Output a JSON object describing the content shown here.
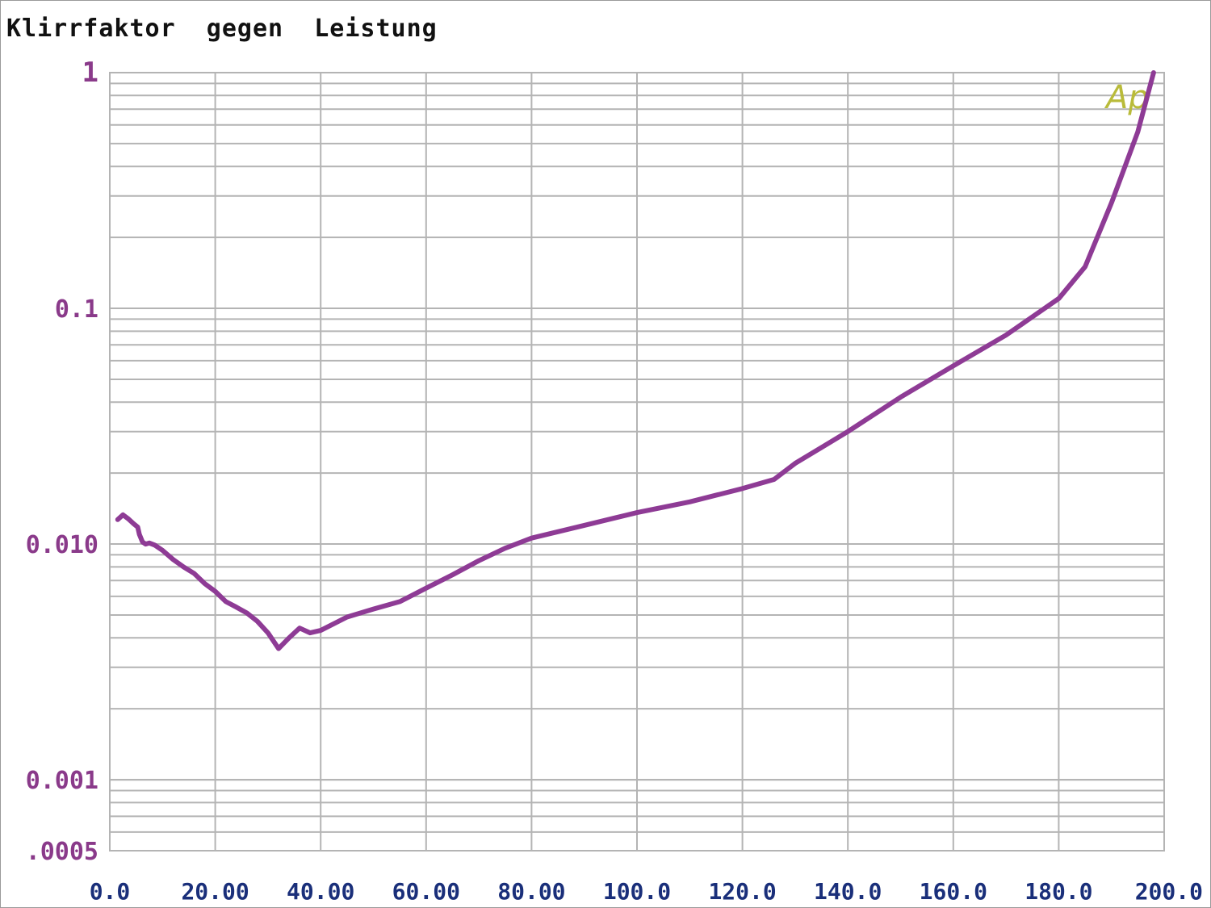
{
  "title": "Klirrfaktor  gegen  Leistung",
  "brand_logo": "Ap",
  "colors": {
    "curve": "#8e3b95",
    "grid": "#b4b4b4",
    "y_tick_text": "#8a3a8a",
    "x_tick_text": "#1a2f7a",
    "brand": "#b9bb3a"
  },
  "chart_data": {
    "type": "line",
    "title": "Klirrfaktor  gegen  Leistung",
    "xlabel": "",
    "ylabel": "",
    "xlim": [
      0,
      200
    ],
    "ylim": [
      0.0005,
      1
    ],
    "y_scale": "log",
    "grid": true,
    "x_tick_labels": [
      "0.0",
      "20.00",
      "40.00",
      "60.00",
      "80.00",
      "100.0",
      "120.0",
      "140.0",
      "160.0",
      "180.0",
      "200.0"
    ],
    "x_tick_values": [
      0,
      20,
      40,
      60,
      80,
      100,
      120,
      140,
      160,
      180,
      200
    ],
    "y_tick_labels": [
      "1",
      "0.1",
      "0.010",
      "0.001",
      ".0005"
    ],
    "y_tick_values": [
      1,
      0.1,
      0.01,
      0.001,
      0.0005
    ],
    "series": [
      {
        "x": [
          1.5,
          2.5,
          3.5,
          4.5,
          5.3,
          5.6,
          6.2,
          6.8,
          7.5,
          8.5,
          10,
          12,
          14,
          16,
          18,
          20,
          22,
          24,
          26,
          28,
          30,
          32,
          34,
          36,
          38,
          40,
          45,
          50,
          55,
          60,
          65,
          70,
          75,
          80,
          90,
          100,
          110,
          120,
          126,
          130,
          140,
          150,
          160,
          170,
          180,
          185,
          190,
          195,
          198
        ],
        "y": [
          0.0127,
          0.0133,
          0.0128,
          0.0122,
          0.0118,
          0.011,
          0.0102,
          0.01,
          0.0101,
          0.0099,
          0.0094,
          0.0086,
          0.008,
          0.0075,
          0.0068,
          0.0063,
          0.0057,
          0.0054,
          0.0051,
          0.0047,
          0.0042,
          0.0036,
          0.004,
          0.0044,
          0.0042,
          0.0043,
          0.0049,
          0.0053,
          0.0057,
          0.0065,
          0.0074,
          0.0085,
          0.0096,
          0.0106,
          0.012,
          0.0136,
          0.0151,
          0.0172,
          0.0188,
          0.022,
          0.03,
          0.042,
          0.057,
          0.077,
          0.11,
          0.15,
          0.28,
          0.56,
          1.0
        ]
      }
    ]
  }
}
